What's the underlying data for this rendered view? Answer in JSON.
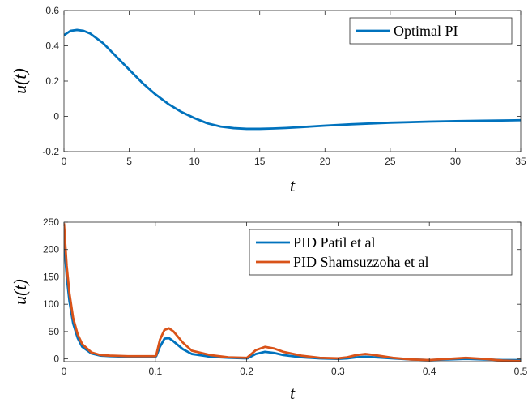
{
  "chart_data": [
    {
      "type": "line",
      "xlabel": "t",
      "ylabel": "u(t)",
      "xlim": [
        0,
        35
      ],
      "ylim": [
        -0.2,
        0.6
      ],
      "xticks": [
        "0",
        "5",
        "10",
        "15",
        "20",
        "25",
        "30",
        "35"
      ],
      "yticks": [
        "-0.2",
        "0",
        "0.2",
        "0.4",
        "0.6"
      ],
      "grid": false,
      "legend_position": "top-right",
      "series": [
        {
          "name": "Optimal PI",
          "color": "#0072BD",
          "x": [
            0,
            0.5,
            1,
            1.5,
            2,
            3,
            4,
            5,
            6,
            7,
            8,
            9,
            10,
            11,
            12,
            13,
            14,
            15,
            16,
            17,
            18,
            20,
            22,
            25,
            28,
            30,
            32,
            35
          ],
          "y": [
            0.46,
            0.485,
            0.49,
            0.485,
            0.47,
            0.415,
            0.34,
            0.265,
            0.19,
            0.125,
            0.07,
            0.025,
            -0.01,
            -0.04,
            -0.058,
            -0.067,
            -0.071,
            -0.071,
            -0.069,
            -0.066,
            -0.062,
            -0.053,
            -0.045,
            -0.036,
            -0.03,
            -0.027,
            -0.025,
            -0.022
          ]
        }
      ]
    },
    {
      "type": "line",
      "xlabel": "t",
      "ylabel": "u(t)",
      "xlim": [
        0,
        0.5
      ],
      "ylim": [
        -5,
        250
      ],
      "xticks": [
        "0",
        "0.1",
        "0.2",
        "0.3",
        "0.4",
        "0.5"
      ],
      "yticks": [
        "0",
        "50",
        "100",
        "150",
        "200",
        "250"
      ],
      "grid": false,
      "legend_position": "top-right",
      "series": [
        {
          "name": "PID Patil et al",
          "color": "#0072BD",
          "x": [
            0,
            0.003,
            0.006,
            0.01,
            0.015,
            0.02,
            0.03,
            0.04,
            0.05,
            0.07,
            0.1,
            0.101,
            0.105,
            0.11,
            0.115,
            0.12,
            0.13,
            0.14,
            0.16,
            0.18,
            0.2,
            0.201,
            0.21,
            0.22,
            0.23,
            0.24,
            0.26,
            0.28,
            0.3,
            0.31,
            0.32,
            0.33,
            0.34,
            0.36,
            0.38,
            0.4,
            0.42,
            0.44,
            0.46,
            0.48,
            0.5
          ],
          "y": [
            218,
            150,
            105,
            65,
            38,
            22,
            10,
            6,
            5,
            4,
            4,
            5,
            22,
            37,
            38,
            32,
            18,
            9,
            4,
            2,
            1,
            1,
            9,
            13,
            11,
            7,
            3,
            1,
            0,
            1,
            3,
            4,
            3,
            1,
            -1,
            -2,
            -1,
            0,
            -1,
            -2,
            -2
          ]
        },
        {
          "name": "PID Shamsuzzoha et al",
          "color": "#D95319",
          "x": [
            0,
            0.003,
            0.006,
            0.01,
            0.015,
            0.02,
            0.03,
            0.04,
            0.05,
            0.07,
            0.1,
            0.101,
            0.105,
            0.11,
            0.115,
            0.12,
            0.13,
            0.14,
            0.16,
            0.18,
            0.2,
            0.201,
            0.21,
            0.22,
            0.23,
            0.24,
            0.26,
            0.28,
            0.3,
            0.31,
            0.32,
            0.33,
            0.34,
            0.36,
            0.38,
            0.4,
            0.42,
            0.44,
            0.46,
            0.48,
            0.5
          ],
          "y": [
            248,
            170,
            120,
            75,
            45,
            27,
            12,
            7,
            6,
            5,
            5,
            7,
            35,
            53,
            56,
            50,
            30,
            15,
            7,
            3,
            2,
            3,
            16,
            22,
            19,
            13,
            6,
            2,
            1,
            3,
            7,
            9,
            7,
            2,
            -1,
            -2,
            0,
            2,
            0,
            -3,
            -4
          ]
        }
      ]
    }
  ]
}
